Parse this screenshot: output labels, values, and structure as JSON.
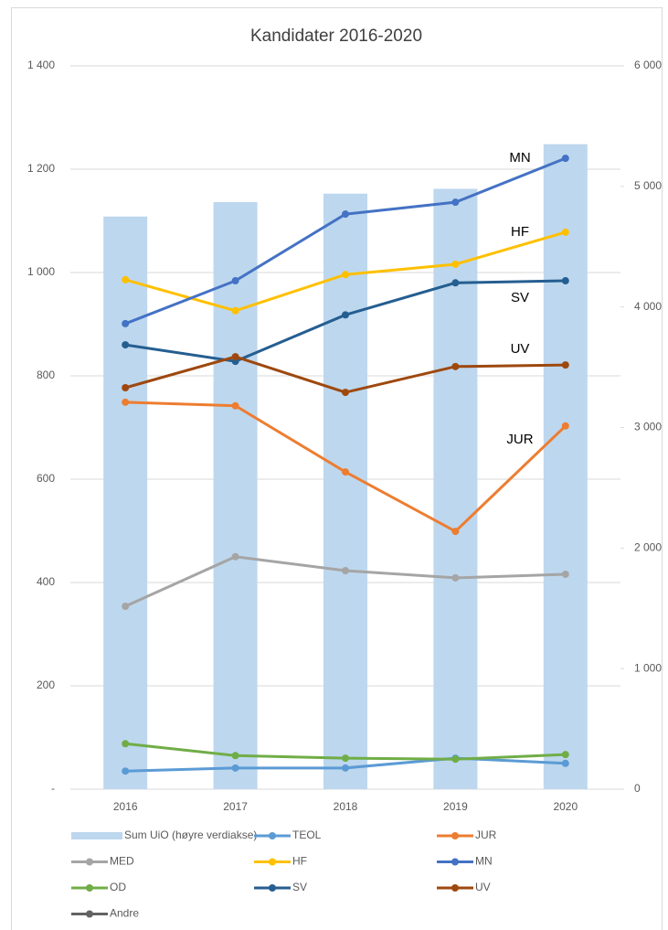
{
  "chart_data": {
    "type": "combo",
    "title": "Kandidater 2016-2020",
    "categories": [
      "2016",
      "2017",
      "2018",
      "2019",
      "2020"
    ],
    "ylim": [
      0,
      1400
    ],
    "yticks": [
      {
        "value": 0,
        "label": "-"
      },
      200,
      400,
      600,
      800,
      {
        "value": 1000,
        "label": "1 000"
      },
      {
        "value": 1200,
        "label": "1 200"
      },
      {
        "value": 1400,
        "label": "1 400"
      }
    ],
    "y2lim": [
      0,
      6000
    ],
    "y2ticks": [
      0,
      {
        "value": 1000,
        "label": "1 000"
      },
      {
        "value": 2000,
        "label": "2 000"
      },
      {
        "value": 3000,
        "label": "3 000"
      },
      {
        "value": 4000,
        "label": "4 000"
      },
      {
        "value": 5000,
        "label": "5 000"
      },
      {
        "value": 6000,
        "label": "6 000"
      }
    ],
    "grid": true,
    "legend": "bottom",
    "series": [
      {
        "name": "Sum UiO (høyre verdiakse)",
        "type": "bar",
        "axis": "y2",
        "color": "#bdd7ee",
        "values": [
          4750,
          4870,
          4940,
          4980,
          5350
        ]
      },
      {
        "name": "TEOL",
        "type": "line",
        "color": "#5b9bd5",
        "values": [
          35,
          41,
          41,
          60,
          50
        ]
      },
      {
        "name": "JUR",
        "type": "line",
        "color": "#ed7d31",
        "values": [
          749,
          742,
          614,
          499,
          703
        ]
      },
      {
        "name": "MED",
        "type": "line",
        "color": "#a5a5a5",
        "values": [
          354,
          450,
          423,
          409,
          416
        ]
      },
      {
        "name": "HF",
        "type": "line",
        "color": "#ffc000",
        "values": [
          986,
          926,
          996,
          1016,
          1078
        ]
      },
      {
        "name": "MN",
        "type": "line",
        "color": "#4472c4",
        "values": [
          901,
          984,
          1113,
          1136,
          1221
        ]
      },
      {
        "name": "OD",
        "type": "line",
        "color": "#70ad47",
        "values": [
          88,
          65,
          60,
          58,
          67
        ]
      },
      {
        "name": "SV",
        "type": "line",
        "color": "#255e91",
        "values": [
          860,
          828,
          918,
          980,
          984
        ]
      },
      {
        "name": "UV",
        "type": "line",
        "color": "#9e480e",
        "values": [
          777,
          837,
          768,
          818,
          821
        ]
      },
      {
        "name": "Andre",
        "type": "line",
        "color": "#636363",
        "values": [
          null,
          null,
          null,
          null,
          null
        ]
      }
    ],
    "annotations": [
      "MN",
      "HF",
      "SV",
      "UV",
      "JUR"
    ]
  }
}
